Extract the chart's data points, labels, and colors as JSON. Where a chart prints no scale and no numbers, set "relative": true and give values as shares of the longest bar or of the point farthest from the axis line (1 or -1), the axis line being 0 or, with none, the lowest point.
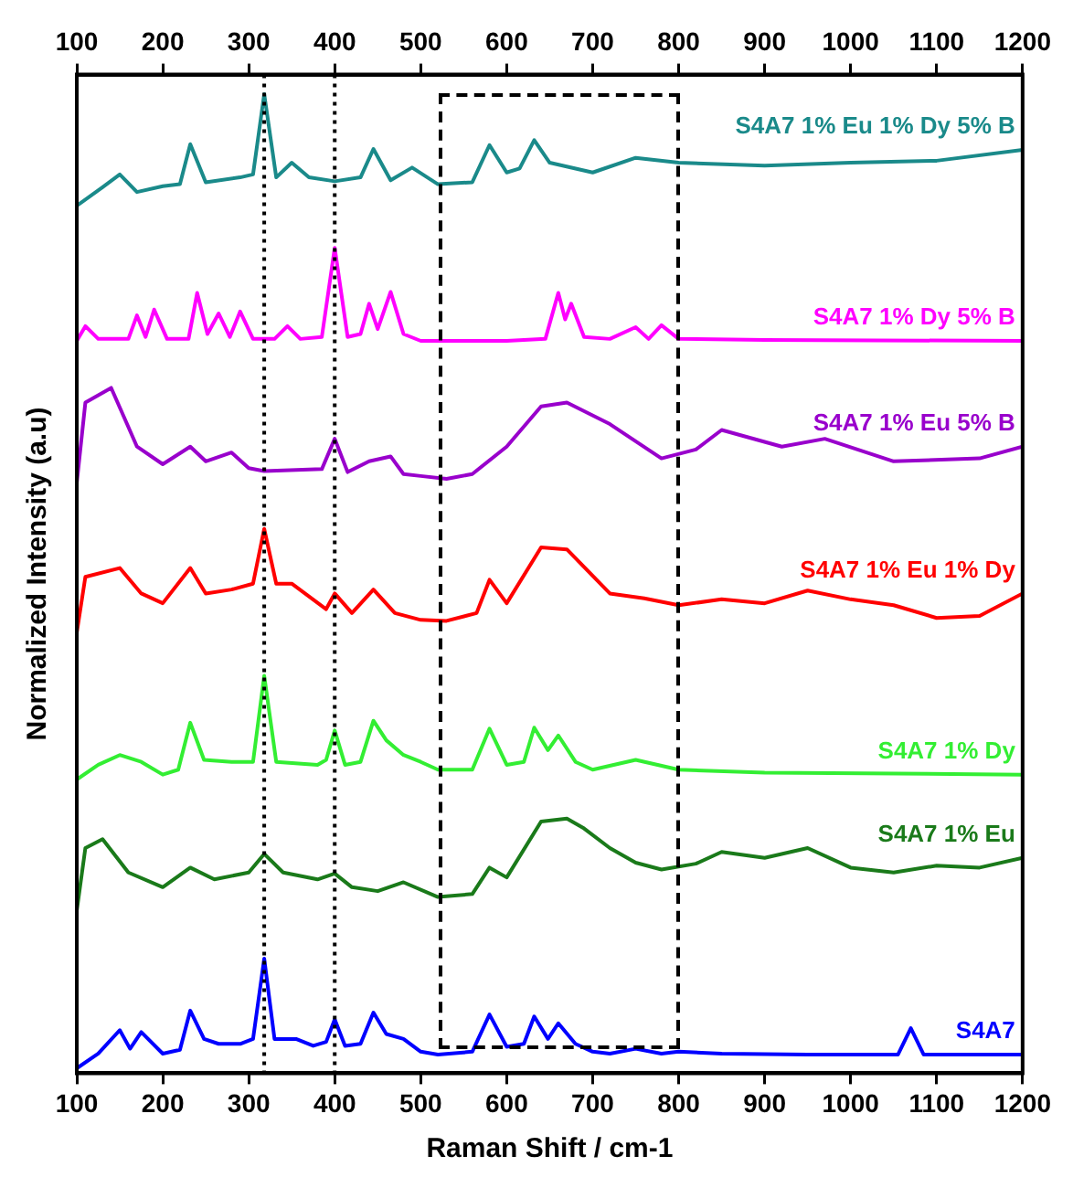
{
  "chart_data": {
    "type": "line",
    "relative": true,
    "xlabel": "Raman Shift / cm-1",
    "ylabel": "Normalized Intensity (a.u)",
    "xlim": [
      100,
      1200
    ],
    "xticks": [
      100,
      200,
      300,
      400,
      500,
      600,
      700,
      800,
      900,
      1000,
      1100,
      1200
    ],
    "x2lim": [
      100,
      1200
    ],
    "x2ticks": [
      100,
      200,
      300,
      400,
      500,
      600,
      700,
      800,
      900,
      1000,
      1100,
      1200
    ],
    "legend": false,
    "grid": false,
    "marker": "none",
    "line_style": "solid",
    "ref_lines": [
      {
        "axis": "x",
        "value": 318,
        "line_style": "dotted",
        "color": "#000000"
      },
      {
        "axis": "x",
        "value": 400,
        "line_style": "dotted",
        "color": "#000000"
      }
    ],
    "series": [
      {
        "name": "S4A7",
        "color": "#0000ff",
        "x": [
          100,
          125,
          150,
          162,
          175,
          200,
          220,
          232,
          248,
          265,
          290,
          305,
          318,
          330,
          355,
          375,
          390,
          400,
          412,
          430,
          445,
          460,
          480,
          500,
          520,
          560,
          580,
          600,
          620,
          632,
          648,
          660,
          680,
          700,
          720,
          750,
          780,
          800,
          850,
          950,
          1055,
          1070,
          1085,
          1200
        ],
        "values": [
          0.005,
          0.02,
          0.044,
          0.025,
          0.042,
          0.02,
          0.024,
          0.064,
          0.035,
          0.03,
          0.03,
          0.035,
          0.117,
          0.035,
          0.035,
          0.028,
          0.032,
          0.055,
          0.028,
          0.03,
          0.062,
          0.04,
          0.035,
          0.022,
          0.019,
          0.022,
          0.06,
          0.027,
          0.03,
          0.058,
          0.035,
          0.051,
          0.03,
          0.022,
          0.02,
          0.025,
          0.02,
          0.022,
          0.02,
          0.019,
          0.019,
          0.046,
          0.019,
          0.019
        ]
      },
      {
        "name": "S4A7 1% Eu",
        "color": "#1a7a1a",
        "x": [
          100,
          110,
          130,
          160,
          200,
          232,
          260,
          300,
          318,
          340,
          380,
          400,
          420,
          450,
          480,
          520,
          560,
          580,
          600,
          640,
          670,
          690,
          720,
          750,
          780,
          820,
          850,
          900,
          950,
          1000,
          1050,
          1100,
          1150,
          1200
        ],
        "values": [
          0.166,
          0.23,
          0.239,
          0.205,
          0.19,
          0.21,
          0.198,
          0.205,
          0.224,
          0.205,
          0.198,
          0.204,
          0.19,
          0.186,
          0.195,
          0.18,
          0.183,
          0.21,
          0.2,
          0.257,
          0.26,
          0.25,
          0.23,
          0.215,
          0.208,
          0.214,
          0.226,
          0.22,
          0.23,
          0.21,
          0.205,
          0.212,
          0.21,
          0.22
        ]
      },
      {
        "name": "S4A7 1% Dy",
        "color": "#33ee33",
        "x": [
          100,
          125,
          150,
          175,
          200,
          218,
          232,
          248,
          280,
          305,
          318,
          332,
          380,
          390,
          400,
          412,
          430,
          445,
          460,
          480,
          500,
          520,
          560,
          580,
          600,
          620,
          632,
          648,
          660,
          680,
          700,
          750,
          800,
          900,
          1200
        ],
        "values": [
          0.3,
          0.315,
          0.325,
          0.318,
          0.305,
          0.31,
          0.358,
          0.32,
          0.318,
          0.318,
          0.406,
          0.318,
          0.315,
          0.32,
          0.35,
          0.315,
          0.318,
          0.36,
          0.34,
          0.325,
          0.318,
          0.31,
          0.31,
          0.352,
          0.315,
          0.318,
          0.353,
          0.33,
          0.345,
          0.318,
          0.31,
          0.32,
          0.31,
          0.307,
          0.305
        ]
      },
      {
        "name": "S4A7 1% Eu 1% Dy",
        "color": "#ff0000",
        "x": [
          100,
          110,
          150,
          175,
          200,
          232,
          250,
          280,
          305,
          318,
          332,
          350,
          390,
          400,
          420,
          445,
          470,
          500,
          530,
          565,
          580,
          600,
          640,
          670,
          720,
          760,
          800,
          850,
          900,
          950,
          1000,
          1050,
          1100,
          1150,
          1200
        ],
        "values": [
          0.45,
          0.507,
          0.516,
          0.49,
          0.48,
          0.516,
          0.49,
          0.494,
          0.5,
          0.556,
          0.5,
          0.5,
          0.474,
          0.49,
          0.47,
          0.494,
          0.47,
          0.463,
          0.462,
          0.47,
          0.504,
          0.48,
          0.537,
          0.535,
          0.49,
          0.485,
          0.478,
          0.484,
          0.48,
          0.493,
          0.484,
          0.478,
          0.465,
          0.467,
          0.49
        ]
      },
      {
        "name": "S4A7 1% Eu 5% B",
        "color": "#9900cc",
        "x": [
          100,
          110,
          140,
          160,
          170,
          200,
          232,
          250,
          280,
          300,
          318,
          385,
          400,
          415,
          440,
          465,
          480,
          500,
          530,
          560,
          600,
          640,
          670,
          720,
          780,
          820,
          850,
          920,
          970,
          1050,
          1150,
          1200
        ],
        "values": [
          0.603,
          0.685,
          0.7,
          0.66,
          0.64,
          0.622,
          0.64,
          0.625,
          0.634,
          0.618,
          0.615,
          0.617,
          0.648,
          0.614,
          0.625,
          0.63,
          0.612,
          0.61,
          0.607,
          0.612,
          0.64,
          0.681,
          0.685,
          0.663,
          0.628,
          0.637,
          0.657,
          0.64,
          0.648,
          0.625,
          0.628,
          0.64
        ]
      },
      {
        "name": "S4A7 1% Dy 5% B",
        "color": "#ff00ff",
        "x": [
          100,
          110,
          125,
          160,
          170,
          180,
          190,
          205,
          230,
          240,
          252,
          265,
          278,
          290,
          305,
          330,
          345,
          360,
          385,
          400,
          415,
          430,
          440,
          450,
          465,
          480,
          500,
          600,
          645,
          660,
          668,
          675,
          690,
          720,
          750,
          765,
          780,
          800,
          900,
          1200
        ],
        "values": [
          0.748,
          0.763,
          0.75,
          0.75,
          0.774,
          0.752,
          0.78,
          0.75,
          0.75,
          0.797,
          0.755,
          0.776,
          0.752,
          0.778,
          0.75,
          0.75,
          0.763,
          0.75,
          0.752,
          0.843,
          0.752,
          0.755,
          0.786,
          0.76,
          0.798,
          0.755,
          0.748,
          0.748,
          0.75,
          0.797,
          0.77,
          0.786,
          0.752,
          0.75,
          0.762,
          0.75,
          0.764,
          0.75,
          0.749,
          0.748
        ]
      },
      {
        "name": "S4A7 1% Eu 1% Dy 5% B",
        "color": "#1a8a8a",
        "x": [
          100,
          130,
          150,
          170,
          200,
          220,
          232,
          250,
          290,
          305,
          318,
          332,
          350,
          370,
          400,
          430,
          445,
          465,
          490,
          520,
          560,
          580,
          600,
          615,
          632,
          650,
          700,
          750,
          800,
          900,
          1000,
          1100,
          1200
        ],
        "values": [
          0.886,
          0.905,
          0.918,
          0.9,
          0.906,
          0.908,
          0.949,
          0.91,
          0.915,
          0.918,
          1,
          0.915,
          0.93,
          0.915,
          0.911,
          0.915,
          0.944,
          0.912,
          0.925,
          0.908,
          0.91,
          0.948,
          0.92,
          0.924,
          0.953,
          0.93,
          0.92,
          0.935,
          0.93,
          0.927,
          0.93,
          0.932,
          0.943
        ]
      }
    ]
  }
}
